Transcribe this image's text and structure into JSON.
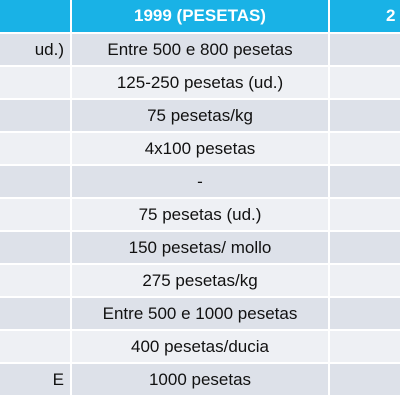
{
  "header": {
    "mid": "1999 (PESETAS)",
    "right": "2"
  },
  "rows": [
    {
      "left": "ud.)",
      "mid": "Entre 500 e 800 pesetas"
    },
    {
      "mid": "125-250 pesetas (ud.)"
    },
    {
      "mid": "75 pesetas/kg"
    },
    {
      "mid": "4x100 pesetas"
    },
    {
      "mid": "-"
    },
    {
      "mid": "75 pesetas (ud.)"
    },
    {
      "mid": "150 pesetas/ mollo"
    },
    {
      "mid": "275 pesetas/kg"
    },
    {
      "mid": "Entre 500 e 1000 pesetas"
    },
    {
      "mid": "400 pesetas/ducia"
    },
    {
      "left": "E",
      "mid": "1000 pesetas"
    }
  ]
}
